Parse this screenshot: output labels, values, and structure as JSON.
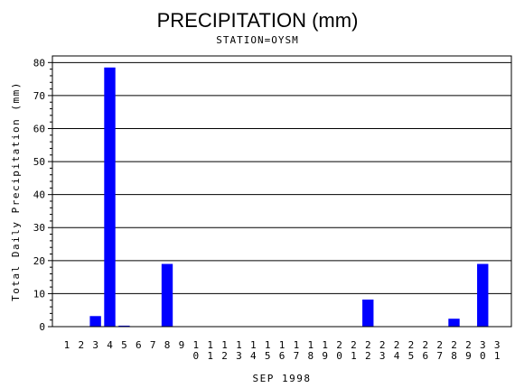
{
  "chart_data": {
    "type": "bar",
    "title": "PRECIPITATION (mm)",
    "subtitle": "STATION=OYSM",
    "xlabel": "SEP 1998",
    "ylabel": "Total Daily Precipitation (mm)",
    "ylim": [
      0,
      82
    ],
    "yticks": [
      "0",
      "10",
      "20",
      "30",
      "40",
      "50",
      "60",
      "70",
      "80"
    ],
    "grid": true,
    "bar_color": "#0000ff",
    "categories": [
      "1",
      "2",
      "3",
      "4",
      "5",
      "6",
      "7",
      "8",
      "9",
      "10",
      "11",
      "12",
      "13",
      "14",
      "15",
      "16",
      "17",
      "18",
      "19",
      "20",
      "21",
      "22",
      "23",
      "24",
      "25",
      "26",
      "27",
      "28",
      "29",
      "30",
      "31"
    ],
    "values": [
      0,
      0,
      3.2,
      78.5,
      0.3,
      0,
      0,
      19,
      0,
      0,
      0,
      0,
      0,
      0,
      0,
      0,
      0,
      0,
      0,
      0,
      0,
      8.2,
      0,
      0,
      0,
      0,
      0,
      2.4,
      0,
      19,
      0
    ]
  }
}
